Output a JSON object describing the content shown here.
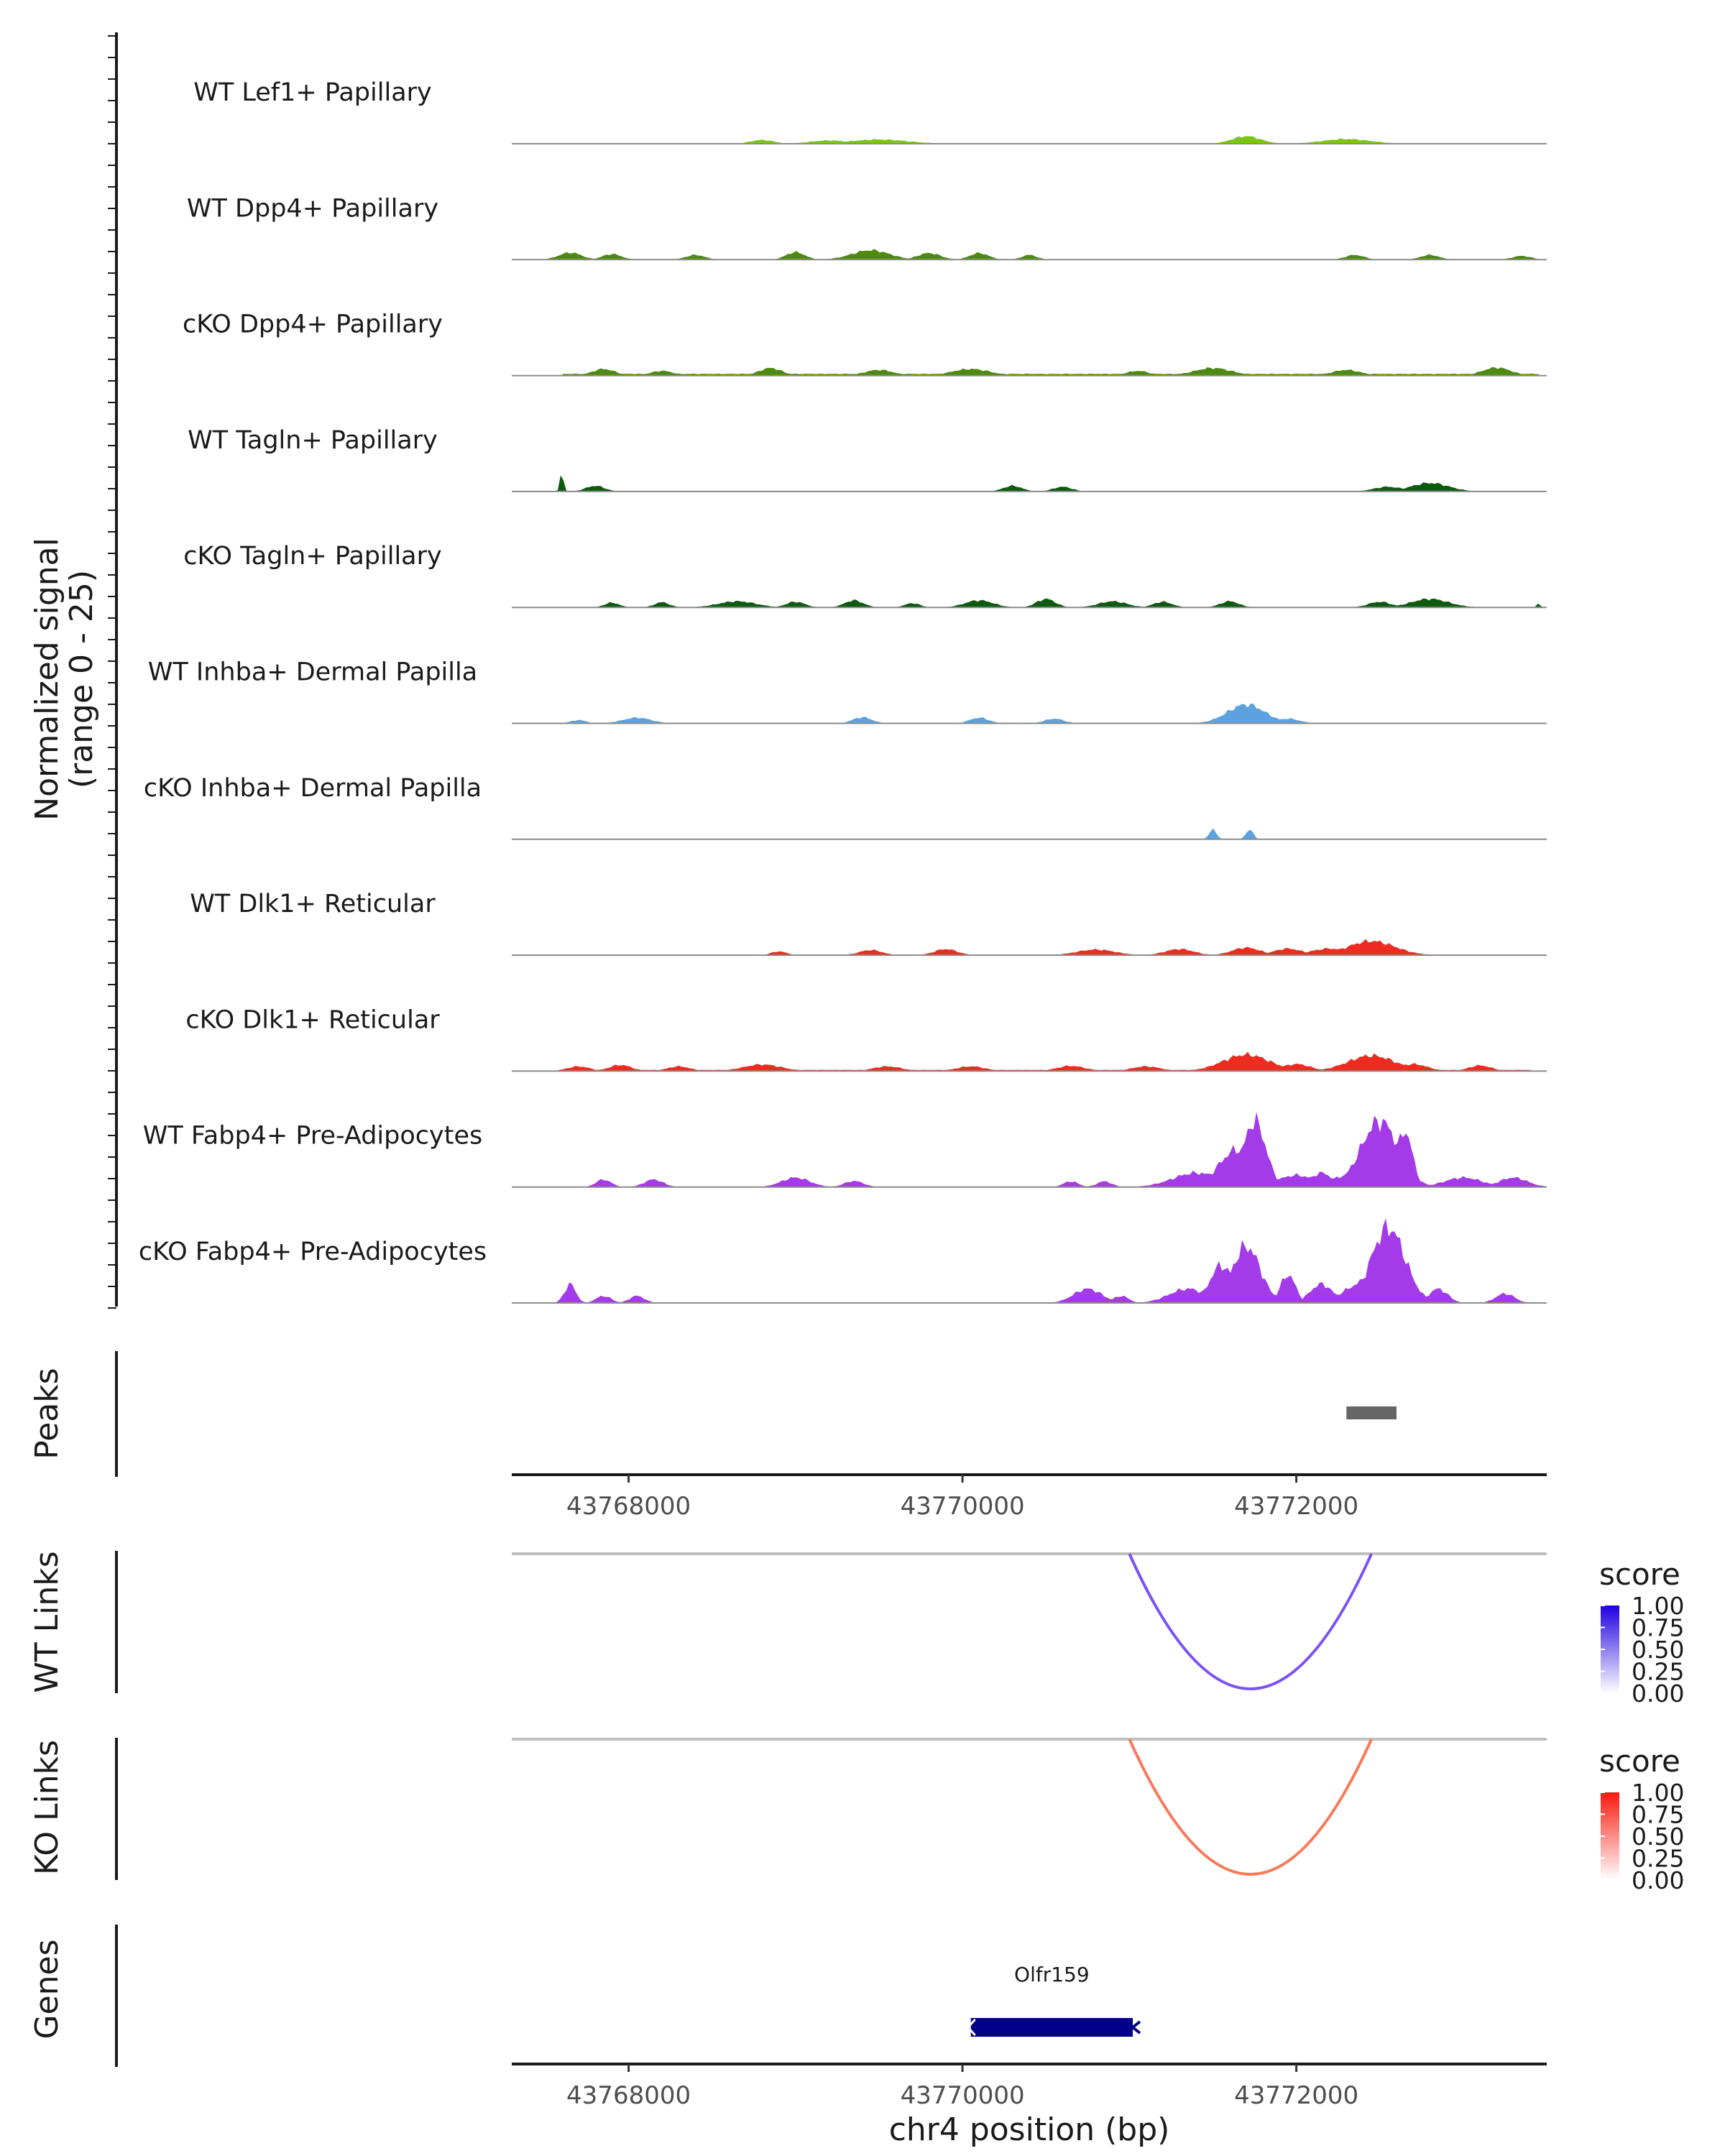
{
  "chart_data": {
    "type": "area",
    "title": "",
    "region": {
      "chrom": "chr4",
      "start": 43767300,
      "end": 43773500
    },
    "coverage": {
      "ylabel_line1": "Normalized signal",
      "ylabel_line2": "(range 0 - 25)",
      "ylim": [
        0,
        25
      ],
      "tracks": [
        {
          "name": "WT Lef1+ Papillary",
          "color": "#7bc70f",
          "peaks": [
            [
              43767700,
              43773450,
              0.12
            ],
            [
              43768800,
              120,
              0.8
            ],
            [
              43769200,
              200,
              0.7
            ],
            [
              43769500,
              300,
              0.9
            ],
            [
              43771700,
              150,
              1.6
            ],
            [
              43772300,
              250,
              1.0
            ]
          ]
        },
        {
          "name": "WT Dpp4+ Papillary",
          "color": "#4d8a0f",
          "peaks": [
            [
              43767650,
              120,
              1.5
            ],
            [
              43767900,
              100,
              1.2
            ],
            [
              43768400,
              100,
              1.0
            ],
            [
              43769000,
              100,
              1.6
            ],
            [
              43769450,
              200,
              2.0
            ],
            [
              43769800,
              120,
              1.4
            ],
            [
              43770100,
              100,
              1.4
            ],
            [
              43770400,
              80,
              1.0
            ],
            [
              43772350,
              100,
              1.0
            ],
            [
              43772800,
              100,
              1.0
            ],
            [
              43773350,
              100,
              0.8
            ]
          ]
        },
        {
          "name": "cKO Dpp4+ Papillary",
          "color": "#4d8a0f",
          "peaks": [
            [
              43767600,
              43773450,
              0.35
            ],
            [
              43767850,
              120,
              1.4
            ],
            [
              43768200,
              120,
              1.0
            ],
            [
              43768850,
              120,
              1.6
            ],
            [
              43769500,
              150,
              1.2
            ],
            [
              43770050,
              200,
              1.4
            ],
            [
              43771050,
              120,
              1.0
            ],
            [
              43771500,
              200,
              1.6
            ],
            [
              43772300,
              150,
              1.2
            ],
            [
              43773200,
              150,
              1.7
            ]
          ]
        },
        {
          "name": "WT Tagln+ Papillary",
          "color": "#0d5a10",
          "peaks": [
            [
              43767600,
              20,
              3.6
            ],
            [
              43767800,
              100,
              1.2
            ],
            [
              43770300,
              100,
              1.2
            ],
            [
              43770600,
              100,
              1.0
            ],
            [
              43772550,
              150,
              1.0
            ],
            [
              43772800,
              200,
              1.8
            ]
          ]
        },
        {
          "name": "cKO Tagln+ Papillary",
          "color": "#0d5a10",
          "peaks": [
            [
              43767900,
              80,
              1.0
            ],
            [
              43768200,
              80,
              1.1
            ],
            [
              43768650,
              200,
              1.3
            ],
            [
              43769000,
              100,
              1.2
            ],
            [
              43769350,
              100,
              1.5
            ],
            [
              43769700,
              80,
              0.9
            ],
            [
              43770100,
              150,
              1.5
            ],
            [
              43770500,
              100,
              1.8
            ],
            [
              43770900,
              150,
              1.3
            ],
            [
              43771200,
              100,
              1.2
            ],
            [
              43771600,
              100,
              1.3
            ],
            [
              43772500,
              120,
              1.2
            ],
            [
              43772800,
              200,
              1.8
            ],
            [
              43773450,
              20,
              0.8
            ]
          ]
        },
        {
          "name": "WT Inhba+ Dermal Papilla",
          "color": "#5aa2e0",
          "peaks": [
            [
              43767700,
              80,
              0.7
            ],
            [
              43768050,
              150,
              1.2
            ],
            [
              43769400,
              100,
              1.3
            ],
            [
              43770100,
              100,
              1.2
            ],
            [
              43770550,
              100,
              1.0
            ],
            [
              43771700,
              200,
              4.0
            ],
            [
              43771950,
              120,
              1.0
            ]
          ]
        },
        {
          "name": "cKO Inhba+ Dermal Papilla",
          "color": "#5aa2e0",
          "peaks": [
            [
              43771500,
              40,
              2.0
            ],
            [
              43771720,
              40,
              2.0
            ]
          ]
        },
        {
          "name": "WT Dlk1+ Reticular",
          "color": "#ee2b20",
          "peaks": [
            [
              43768900,
              80,
              0.8
            ],
            [
              43769450,
              120,
              1.1
            ],
            [
              43769900,
              120,
              1.3
            ],
            [
              43770800,
              200,
              1.2
            ],
            [
              43771300,
              150,
              1.3
            ],
            [
              43771700,
              150,
              1.6
            ],
            [
              43771950,
              150,
              1.4
            ],
            [
              43772450,
              250,
              3.0
            ],
            [
              43772200,
              200,
              1.4
            ]
          ]
        },
        {
          "name": "cKO Dlk1+ Reticular",
          "color": "#ee2b20",
          "peaks": [
            [
              43767600,
              43773400,
              0.25
            ],
            [
              43767700,
              120,
              1.0
            ],
            [
              43767950,
              120,
              1.3
            ],
            [
              43768300,
              120,
              1.0
            ],
            [
              43768800,
              200,
              1.4
            ],
            [
              43769550,
              150,
              1.0
            ],
            [
              43770050,
              150,
              1.0
            ],
            [
              43770650,
              150,
              1.1
            ],
            [
              43771100,
              150,
              1.0
            ],
            [
              43771700,
              250,
              3.5
            ],
            [
              43772000,
              150,
              1.5
            ],
            [
              43772450,
              250,
              3.3
            ],
            [
              43772700,
              150,
              1.5
            ],
            [
              43773100,
              120,
              1.2
            ]
          ]
        },
        {
          "name": "WT Fabp4+ Pre-Adipocytes",
          "color": "#a43be8",
          "peaks": [
            [
              43767850,
              80,
              1.6
            ],
            [
              43768150,
              100,
              1.6
            ],
            [
              43769000,
              150,
              2.0
            ],
            [
              43769350,
              100,
              1.3
            ],
            [
              43770650,
              80,
              1.2
            ],
            [
              43770850,
              80,
              1.2
            ],
            [
              43771400,
              250,
              3.0
            ],
            [
              43771750,
              120,
              14.0
            ],
            [
              43771650,
              200,
              8.0
            ],
            [
              43772000,
              200,
              2.5
            ],
            [
              43772300,
              150,
              2.5
            ],
            [
              43772500,
              200,
              14.0
            ],
            [
              43772650,
              80,
              12.0
            ],
            [
              43772150,
              120,
              3.0
            ],
            [
              43773000,
              200,
              2.0
            ],
            [
              43773300,
              150,
              2.0
            ]
          ]
        },
        {
          "name": "cKO Fabp4+ Pre-Adipocytes",
          "color": "#a43be8",
          "peaks": [
            [
              43767650,
              60,
              4.0
            ],
            [
              43767850,
              80,
              1.5
            ],
            [
              43768050,
              80,
              1.5
            ],
            [
              43770750,
              150,
              3.0
            ],
            [
              43770950,
              80,
              1.5
            ],
            [
              43771350,
              200,
              3.0
            ],
            [
              43771550,
              120,
              8.0
            ],
            [
              43771700,
              150,
              12.0
            ],
            [
              43771950,
              80,
              6.0
            ],
            [
              43772150,
              120,
              4.0
            ],
            [
              43772550,
              180,
              16.0
            ],
            [
              43772450,
              250,
              5.0
            ],
            [
              43772850,
              100,
              3.0
            ],
            [
              43773250,
              100,
              2.0
            ]
          ]
        }
      ]
    },
    "peaks_track": {
      "label": "Peaks",
      "color": "#666666",
      "intervals": [
        [
          43772300,
          43772600
        ]
      ]
    },
    "links": [
      {
        "label": "WT Links",
        "color": "#7c52f5",
        "start": 43771000,
        "end": 43772450,
        "score": 0.65,
        "legend_title": "score",
        "legend_high": "#1f00e0",
        "legend_low": "#ffffff"
      },
      {
        "label": "KO Links",
        "color": "#f87a5a",
        "start": 43771000,
        "end": 43772450,
        "score": 0.6,
        "legend_title": "score",
        "legend_high": "#f81a10",
        "legend_low": "#ffffff"
      }
    ],
    "legend_ticks": [
      "1.00",
      "0.75",
      "0.50",
      "0.25",
      "0.00"
    ],
    "genes": {
      "label": "Genes",
      "items": [
        {
          "name": "Olfr159",
          "start": 43770050,
          "end": 43771020,
          "strand": "-",
          "color": "#00008b"
        }
      ]
    },
    "xaxis": {
      "ticks": [
        43768000,
        43770000,
        43772000
      ],
      "tick_labels": [
        "43768000",
        "43770000",
        "43772000"
      ],
      "xlabel": "chr4 position (bp)"
    }
  }
}
